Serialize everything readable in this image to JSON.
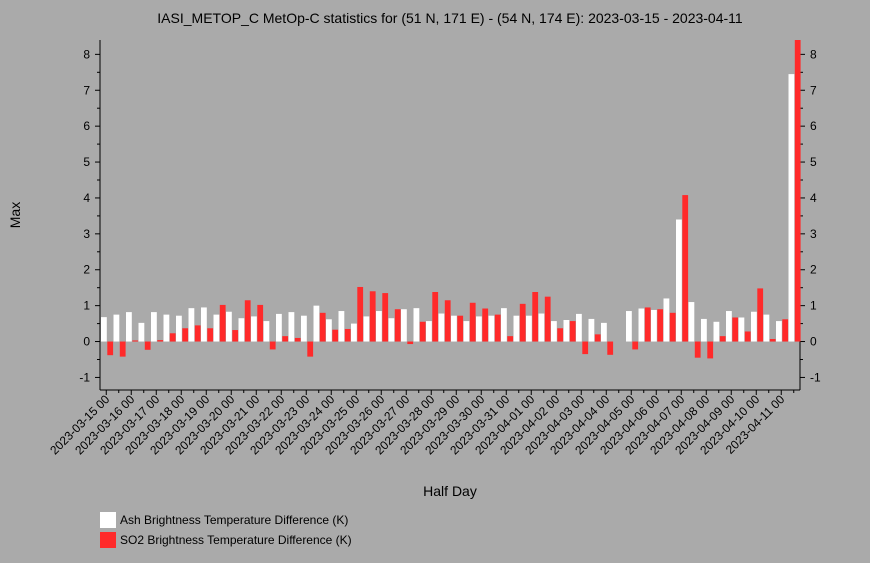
{
  "chart_data": {
    "type": "bar",
    "title": "IASI_METOP_C MetOp-C statistics for (51 N, 171 E) - (54 N, 174 E): 2023-03-15 - 2023-04-11",
    "xlabel": "Half Day",
    "ylabel": "Max",
    "ylim": [
      -1.35,
      8.4
    ],
    "yticks": [
      -1,
      0,
      1,
      2,
      3,
      4,
      5,
      6,
      7,
      8
    ],
    "grid": false,
    "legend_position": "bottom-left",
    "categories": [
      "2023-03-15 00",
      "2023-03-15 12",
      "2023-03-16 00",
      "2023-03-16 12",
      "2023-03-17 00",
      "2023-03-17 12",
      "2023-03-18 00",
      "2023-03-18 12",
      "2023-03-19 00",
      "2023-03-19 12",
      "2023-03-20 00",
      "2023-03-20 12",
      "2023-03-21 00",
      "2023-03-21 12",
      "2023-03-22 00",
      "2023-03-22 12",
      "2023-03-23 00",
      "2023-03-23 12",
      "2023-03-24 00",
      "2023-03-24 12",
      "2023-03-25 00",
      "2023-03-25 12",
      "2023-03-26 00",
      "2023-03-26 12",
      "2023-03-27 00",
      "2023-03-27 12",
      "2023-03-28 00",
      "2023-03-28 12",
      "2023-03-29 00",
      "2023-03-29 12",
      "2023-03-30 00",
      "2023-03-30 12",
      "2023-03-31 00",
      "2023-03-31 12",
      "2023-04-01 00",
      "2023-04-01 12",
      "2023-04-02 00",
      "2023-04-02 12",
      "2023-04-03 00",
      "2023-04-03 12",
      "2023-04-04 00",
      "2023-04-04 12",
      "2023-04-05 00",
      "2023-04-05 12",
      "2023-04-06 00",
      "2023-04-06 12",
      "2023-04-07 00",
      "2023-04-07 12",
      "2023-04-08 00",
      "2023-04-08 12",
      "2023-04-09 00",
      "2023-04-09 12",
      "2023-04-10 00",
      "2023-04-10 12",
      "2023-04-11 00",
      "2023-04-11 12"
    ],
    "tick_labels": [
      "2023-03-15 00",
      "2023-03-16 00",
      "2023-03-17 00",
      "2023-03-18 00",
      "2023-03-19 00",
      "2023-03-20 00",
      "2023-03-21 00",
      "2023-03-22 00",
      "2023-03-23 00",
      "2023-03-24 00",
      "2023-03-25 00",
      "2023-03-26 00",
      "2023-03-27 00",
      "2023-03-28 00",
      "2023-03-29 00",
      "2023-03-30 00",
      "2023-03-31 00",
      "2023-04-01 00",
      "2023-04-02 00",
      "2023-04-03 00",
      "2023-04-04 00",
      "2023-04-05 00",
      "2023-04-06 00",
      "2023-04-07 00",
      "2023-04-08 00",
      "2023-04-09 00",
      "2023-04-10 00",
      "2023-04-11 00"
    ],
    "series": [
      {
        "name": "Ash Brightness Temperature Difference (K)",
        "color": "#ffffff",
        "values": [
          0.68,
          0.75,
          0.82,
          0.52,
          0.82,
          0.75,
          0.72,
          0.93,
          0.95,
          0.75,
          0.83,
          0.65,
          0.7,
          0.57,
          0.77,
          0.82,
          0.72,
          1.0,
          0.62,
          0.85,
          0.5,
          0.7,
          0.85,
          0.65,
          0.9,
          0.93,
          0.57,
          0.78,
          0.72,
          0.57,
          0.7,
          0.72,
          0.93,
          0.72,
          0.72,
          0.78,
          0.57,
          0.6,
          0.77,
          0.63,
          0.52,
          null,
          0.85,
          0.92,
          0.88,
          1.2,
          3.4,
          1.1,
          0.63,
          0.55,
          0.85,
          0.67,
          0.83,
          0.75,
          0.57,
          7.45
        ]
      },
      {
        "name": "SO2 Brightness Temperature Difference (K)",
        "color": "#ff2a2a",
        "values": [
          -0.38,
          -0.42,
          0.03,
          -0.23,
          0.04,
          0.23,
          0.37,
          0.45,
          0.37,
          1.02,
          0.32,
          1.15,
          1.02,
          -0.22,
          0.15,
          0.1,
          -0.42,
          0.8,
          0.33,
          0.35,
          1.52,
          1.4,
          1.35,
          0.9,
          -0.07,
          0.55,
          1.38,
          1.15,
          0.72,
          1.08,
          0.92,
          0.75,
          0.15,
          1.05,
          1.38,
          1.25,
          0.37,
          0.57,
          -0.35,
          0.2,
          -0.37,
          null,
          -0.22,
          0.95,
          0.9,
          0.8,
          4.08,
          -0.45,
          -0.47,
          0.15,
          0.67,
          0.28,
          1.48,
          0.07,
          0.62,
          8.4
        ]
      }
    ]
  }
}
